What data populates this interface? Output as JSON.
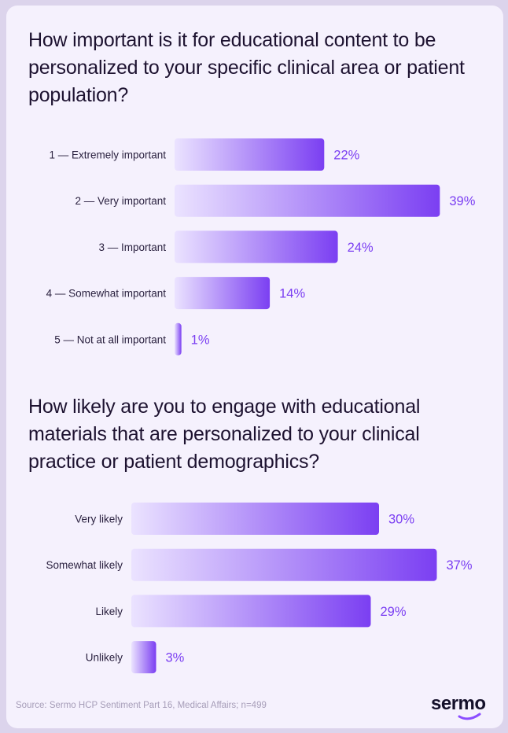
{
  "charts": [
    {
      "question": "How important is it for educational content to be personalized to your specific clinical area or patient population?"
    },
    {
      "question": "How likely are you to engage with educational materials that are personalized to your clinical practice or patient demographics?"
    }
  ],
  "chart_data": [
    {
      "type": "bar",
      "orientation": "horizontal",
      "title": "How important is it for educational content to be personalized to your specific clinical area or patient population?",
      "categories": [
        "1 — Extremely important",
        "2 — Very important",
        "3 — Important",
        "4 — Somewhat important",
        "5 — Not at all important"
      ],
      "values": [
        22,
        39,
        24,
        14,
        1
      ],
      "value_labels": [
        "22%",
        "39%",
        "24%",
        "14%",
        "1%"
      ],
      "unit": "%"
    },
    {
      "type": "bar",
      "orientation": "horizontal",
      "title": "How likely are you to engage with educational materials that are personalized to your clinical practice or patient demographics?",
      "categories": [
        "Very likely",
        "Somewhat likely",
        "Likely",
        "Unlikely"
      ],
      "values": [
        30,
        37,
        29,
        3
      ],
      "value_labels": [
        "30%",
        "37%",
        "29%",
        "3%"
      ],
      "unit": "%"
    }
  ],
  "colors": {
    "bar_start": "#ebe3ff",
    "bar_end": "#7b3ff2",
    "value_text": "#7b3ff2"
  },
  "footer": {
    "source": "Source: Sermo HCP Sentiment Part 16, Medical Affairs; n=499"
  },
  "brand": {
    "logo_text": "sermo"
  }
}
